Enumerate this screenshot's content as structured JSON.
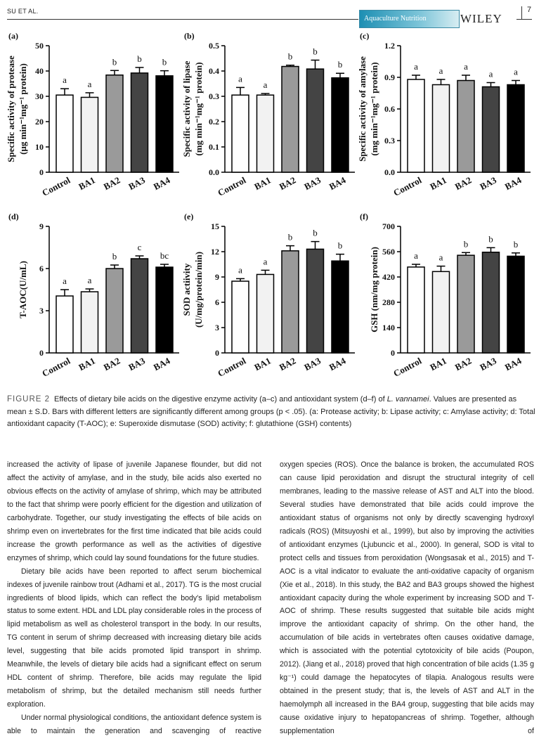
{
  "header": {
    "running_head": "SU ET AL.",
    "page": "7",
    "journal": "Aquaculture Nutrition",
    "publisher": "WILEY"
  },
  "chart_data": [
    {
      "type": "bar",
      "panel": "(a)",
      "y_label": [
        "Specific activity of protease",
        "(μg min⁻¹mg⁻¹ protein)"
      ],
      "categories": [
        "Control",
        "BA1",
        "BA2",
        "BA3",
        "BA4"
      ],
      "values": [
        30.5,
        29.6,
        38.4,
        39.2,
        38.1
      ],
      "errors": [
        2.5,
        1.8,
        1.8,
        2.2,
        2.0
      ],
      "letters": [
        "a",
        "a",
        "b",
        "b",
        "b"
      ],
      "colors": [
        "#ffffff",
        "#f2f2f2",
        "#9a9a9a",
        "#444444",
        "#000000"
      ],
      "ylim": [
        0,
        50
      ],
      "yticks": [
        0,
        10,
        20,
        30,
        40,
        50
      ]
    },
    {
      "type": "bar",
      "panel": "(b)",
      "y_label": [
        "Specific activity of lipase",
        "(mg min⁻¹mg⁻¹ protein)"
      ],
      "categories": [
        "Control",
        "BA1",
        "BA2",
        "BA3",
        "BA4"
      ],
      "values": [
        0.305,
        0.305,
        0.418,
        0.408,
        0.373
      ],
      "errors": [
        0.03,
        0.006,
        0.005,
        0.035,
        0.018
      ],
      "letters": [
        "a",
        "a",
        "b",
        "b",
        "b"
      ],
      "colors": [
        "#ffffff",
        "#f2f2f2",
        "#9a9a9a",
        "#444444",
        "#000000"
      ],
      "ylim": [
        0,
        0.5
      ],
      "yticks": [
        {
          "value": 0,
          "label": "0.0"
        },
        0.1,
        0.2,
        0.3,
        0.4,
        0.5
      ]
    },
    {
      "type": "bar",
      "panel": "(c)",
      "y_label": [
        "Specific activity of amylase",
        "(mg min⁻¹mg⁻¹ protein)"
      ],
      "categories": [
        "Control",
        "BA1",
        "BA2",
        "BA3",
        "BA4"
      ],
      "values": [
        0.88,
        0.83,
        0.87,
        0.81,
        0.83
      ],
      "errors": [
        0.04,
        0.05,
        0.05,
        0.04,
        0.04
      ],
      "letters": [
        "a",
        "a",
        "a",
        "a",
        "a"
      ],
      "colors": [
        "#ffffff",
        "#f2f2f2",
        "#9a9a9a",
        "#444444",
        "#000000"
      ],
      "ylim": [
        0,
        1.2
      ],
      "yticks": [
        {
          "value": 0,
          "label": "0.0"
        },
        0.3,
        0.6,
        0.9,
        1.2
      ]
    },
    {
      "type": "bar",
      "panel": "(d)",
      "y_label": [
        "T-AOC(U/mL)"
      ],
      "categories": [
        "Control",
        "BA1",
        "BA2",
        "BA3",
        "BA4"
      ],
      "values": [
        4.05,
        4.35,
        6.0,
        6.7,
        6.1
      ],
      "errors": [
        0.45,
        0.2,
        0.25,
        0.2,
        0.2
      ],
      "letters": [
        "a",
        "a",
        "b",
        "c",
        "bc"
      ],
      "colors": [
        "#ffffff",
        "#f2f2f2",
        "#9a9a9a",
        "#444444",
        "#000000"
      ],
      "ylim": [
        0,
        9
      ],
      "yticks": [
        0,
        3,
        6,
        9
      ]
    },
    {
      "type": "bar",
      "panel": "(e)",
      "y_label": [
        "SOD actiivity",
        "(U/mg/protein/min)"
      ],
      "categories": [
        "Control",
        "BA1",
        "BA2",
        "BA3",
        "BA4"
      ],
      "values": [
        8.5,
        9.3,
        12.1,
        12.3,
        10.9
      ],
      "errors": [
        0.3,
        0.5,
        0.6,
        0.9,
        0.8
      ],
      "letters": [
        "a",
        "a",
        "b",
        "b",
        "b"
      ],
      "colors": [
        "#ffffff",
        "#f2f2f2",
        "#9a9a9a",
        "#444444",
        "#000000"
      ],
      "ylim": [
        0,
        15
      ],
      "yticks": [
        0,
        3,
        6,
        9,
        12,
        15
      ]
    },
    {
      "type": "bar",
      "panel": "(f)",
      "y_label": [
        "GSH (nm/mg protein)"
      ],
      "categories": [
        "Control",
        "BA1",
        "BA2",
        "BA3",
        "BA4"
      ],
      "values": [
        475,
        450,
        540,
        557,
        535
      ],
      "errors": [
        15,
        30,
        15,
        25,
        18
      ],
      "letters": [
        "a",
        "a",
        "b",
        "b",
        "b"
      ],
      "colors": [
        "#ffffff",
        "#f2f2f2",
        "#9a9a9a",
        "#444444",
        "#000000"
      ],
      "ylim": [
        0,
        700
      ],
      "yticks": [
        0,
        140,
        280,
        420,
        560,
        700
      ]
    }
  ],
  "caption": {
    "label": "FIGURE 2",
    "text_before": "Effects of dietary bile acids on the digestive enzyme activity (a–c) and antioxidant system (d–f) of ",
    "species": "L. vannamei",
    "text_after": ". Values are presented as mean ± S.D. Bars with different letters are significantly different among groups (p < .05). (a: Protease activity; b: Lipase activity; c: Amylase activity; d: Total antioxidant capacity (T-AOC); e: Superoxide dismutase (SOD) activity; f: glutathione (GSH) contents)"
  },
  "body": {
    "left": [
      "increased the activity of lipase of juvenile Japanese flounder, but did not affect the activity of amylase, and in the study, bile acids also exerted no obvious effects on the activity of amylase of shrimp, which may be attributed to the fact that shrimp were poorly efficient for the digestion and utilization of carbohydrate. Together, our study investigating the effects of bile acids on shrimp even on invertebrates for the first time indicated that bile acids could increase the growth performance as well as the activities of digestive enzymes of shrimp, which could lay sound foundations for the future studies.",
      "Dietary bile acids have been reported to affect serum biochemical indexes of juvenile rainbow trout (Adhami et al., 2017). TG is the most crucial ingredients of blood lipids, which can reflect the body's lipid metabolism status to some extent. HDL and LDL play considerable roles in the process of lipid metabolism as well as cholesterol transport in the body. In our results, TG content in serum of shrimp decreased with increasing dietary bile acids level, suggesting that bile acids promoted lipid transport in shrimp. Meanwhile, the levels of dietary bile acids had a significant effect on serum HDL content of shrimp. Therefore, bile acids may regulate the lipid metabolism of shrimp, but the detailed mechanism still needs further exploration.",
      "Under normal physiological conditions, the antioxidant defence system is able to maintain the generation and scavenging of reactive"
    ],
    "right": [
      "oxygen species (ROS). Once the balance is broken, the accumulated ROS can cause lipid peroxidation and disrupt the structural integrity of cell membranes, leading to the massive release of AST and ALT into the blood. Several studies have demonstrated that bile acids could improve the antioxidant status of organisms not only by directly scavenging hydroxyl radicals (ROS) (Mitsuyoshi et al., 1999), but also by improving the activities of antioxidant enzymes (Ljubuncic et al., 2000). In general, SOD is vital to protect cells and tissues from peroxidation (Wongsasak et al., 2015) and T-AOC is a vital indicator to evaluate the anti-oxidative capacity of organism (Xie et al., 2018). In this study, the BA2 and BA3 groups showed the highest antioxidant capacity during the whole experiment by increasing SOD and T-AOC of shrimp. These results suggested that suitable bile acids might improve the antioxidant capacity of shrimp. On the other hand, the accumulation of bile acids in vertebrates often causes oxidative damage, which is associated with the potential cytotoxicity of bile acids (Poupon, 2012). (Jiang et al., 2018) proved that high concentration of bile acids (1.35 g kg⁻¹) could damage the hepatocytes of tilapia. Analogous results were obtained in the present study; that is, the levels of AST and ALT in the haemolymph all increased in the BA4 group, suggesting that bile acids may cause oxidative injury to hepatopancreas of shrimp. Together, although supplementation of"
    ]
  }
}
